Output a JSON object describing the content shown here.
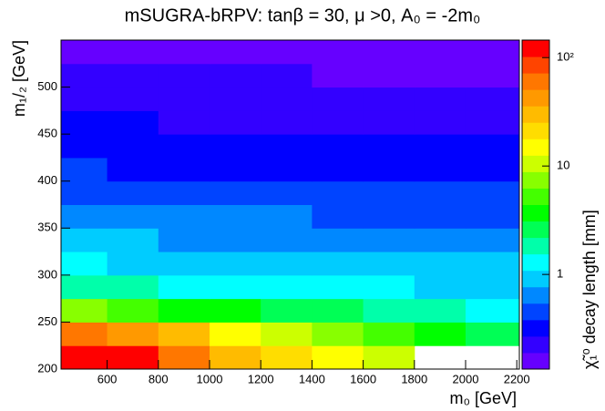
{
  "chart_data": {
    "type": "heatmap",
    "title": "mSUGRA-bRPV: tanβ = 30, μ >0, A₀ = -2m₀",
    "x_label": "m₀ [GeV]",
    "y_label": "m₁/₂ [GeV]",
    "z_label": "χ̃₁⁰ decay length [mm]",
    "xlim": [
      420,
      2210
    ],
    "ylim": [
      200,
      550
    ],
    "xticks": [
      600,
      800,
      1000,
      1200,
      1400,
      1600,
      1800,
      2000,
      2200
    ],
    "yticks": [
      200,
      250,
      300,
      350,
      400,
      450,
      500
    ],
    "x_bins": [
      420,
      600,
      800,
      1000,
      1200,
      1400,
      1600,
      1800,
      2000,
      2210
    ],
    "y_bins": [
      200,
      225,
      250,
      275,
      300,
      325,
      350,
      375,
      400,
      425,
      450,
      475,
      500,
      525,
      550
    ],
    "zlim": [
      0.134,
      145
    ],
    "zlog": true,
    "zticks": [
      1,
      10,
      {
        "value": 100,
        "label": "10²"
      }
    ],
    "palette": [
      "#6600ff",
      "#3300ff",
      "#0000ff",
      "#0044ff",
      "#0088ff",
      "#00ccff",
      "#00ffff",
      "#00ffaa",
      "#00ff55",
      "#00ff00",
      "#44ff00",
      "#88ff00",
      "#ccff00",
      "#ffff00",
      "#ffdd00",
      "#ffbb00",
      "#ff9900",
      "#ff7700",
      "#ff4400",
      "#ff0000"
    ],
    "z": [
      [
        121,
        121,
        60,
        30,
        21,
        15,
        10.5,
        null,
        null
      ],
      [
        60,
        42,
        30,
        15,
        10.5,
        7.4,
        5.2,
        3.7,
        2.6
      ],
      [
        7.4,
        5.2,
        3.7,
        3.7,
        2.6,
        2.6,
        1.8,
        1.8,
        1.3
      ],
      [
        1.8,
        1.8,
        1.3,
        1.3,
        1.3,
        1.3,
        1.3,
        0.91,
        0.91
      ],
      [
        1.3,
        0.91,
        0.91,
        0.91,
        0.91,
        0.91,
        0.91,
        0.91,
        0.91
      ],
      [
        0.91,
        0.91,
        0.64,
        0.64,
        0.64,
        0.64,
        0.64,
        0.64,
        0.64
      ],
      [
        0.64,
        0.64,
        0.64,
        0.64,
        0.64,
        0.45,
        0.45,
        0.45,
        0.45
      ],
      [
        0.45,
        0.45,
        0.45,
        0.45,
        0.45,
        0.45,
        0.45,
        0.45,
        0.45
      ],
      [
        0.45,
        0.32,
        0.32,
        0.32,
        0.32,
        0.32,
        0.32,
        0.32,
        0.32
      ],
      [
        0.32,
        0.32,
        0.32,
        0.32,
        0.32,
        0.32,
        0.32,
        0.32,
        0.32
      ],
      [
        0.32,
        0.32,
        0.23,
        0.23,
        0.23,
        0.23,
        0.23,
        0.23,
        0.23
      ],
      [
        0.23,
        0.23,
        0.23,
        0.23,
        0.23,
        0.23,
        0.23,
        0.23,
        0.23
      ],
      [
        0.23,
        0.23,
        0.23,
        0.23,
        0.23,
        0.16,
        0.16,
        0.16,
        0.16
      ],
      [
        0.16,
        0.16,
        0.16,
        0.16,
        0.16,
        0.16,
        0.16,
        0.16,
        0.16
      ]
    ]
  }
}
